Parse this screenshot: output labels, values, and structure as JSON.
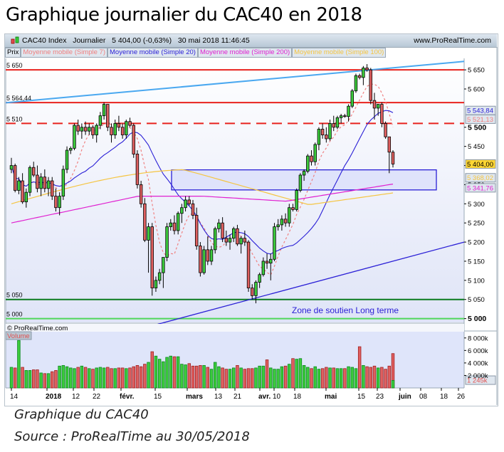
{
  "title": "Graphique journalier du CAC40 en 2018",
  "header": {
    "instrument": "CAC40 Index",
    "timeframe": "Journalier",
    "last_price": "5 404,00 (-0,63%)",
    "datetime": "30 mai 2018 11:46:45",
    "site": "www.ProRealTime.com"
  },
  "legend": [
    {
      "label": "Prix",
      "color": "#000000"
    },
    {
      "label": "Moyenne mobile (Simple 7)",
      "color": "#f08080"
    },
    {
      "label": "Moyenne mobile (Simple 20)",
      "color": "#2a1fd6"
    },
    {
      "label": "Moyenne mobile (Simple 200)",
      "color": "#e020d0"
    },
    {
      "label": "Moyenne mobile (Simple 100)",
      "color": "#f5c542"
    }
  ],
  "copyright": "© ProRealTime.com",
  "volume_label": "Volume",
  "annotation": "Zone de soutien Long terme",
  "caption": {
    "line1": "Graphique du CAC40",
    "line2": "Source : ProRealTime au 30/05/2018"
  },
  "chart_data": {
    "type": "candlestick",
    "title": "Graphique journalier du CAC40 en 2018",
    "x_tick_labels": [
      "14",
      "2018",
      "12",
      "22",
      "févr.",
      "15",
      "mars",
      "13",
      "21",
      "avr.",
      "10",
      "18",
      "mai",
      "15",
      "23",
      "juin",
      "08",
      "18",
      "26"
    ],
    "y_tick_labels": [
      "5 650",
      "5 600",
      "5 500",
      "5 450",
      "5 400",
      "5 350",
      "5 300",
      "5 250",
      "5 200",
      "5 150",
      "5 100",
      "5 050",
      "5 000"
    ],
    "ylim": [
      4990,
      5680
    ],
    "volume_tick_labels": [
      "8 000k",
      "6 000k",
      "4 000k",
      "2 000k"
    ],
    "price_badges": [
      {
        "label": "5 543,84",
        "series": "MM20",
        "color": "#2a1fd6"
      },
      {
        "label": "5 521,13",
        "series": "MM7",
        "color": "#f08080"
      },
      {
        "label": "5 404,00",
        "series": "Prix",
        "color": "#000000",
        "bg": "#ffd633"
      },
      {
        "label": "5 368,02",
        "series": "MM100",
        "color": "#f5c542"
      },
      {
        "label": "5 341,76",
        "series": "MM200",
        "color": "#e020d0"
      },
      {
        "label": "1 245k",
        "series": "Volume",
        "color": "#e05050"
      }
    ],
    "horizontal_levels": [
      {
        "value": 5650,
        "label": "5 650",
        "color": "#e8231e",
        "style": "solid"
      },
      {
        "value": 5564.44,
        "label": "5 564,44",
        "color": "#e8231e",
        "style": "solid"
      },
      {
        "value": 5510,
        "label": "5 510",
        "color": "#e8231e",
        "style": "dashed"
      },
      {
        "value": 5050,
        "label": "5 050",
        "color": "#0a7a1e",
        "style": "solid"
      },
      {
        "value": 5000,
        "label": "5 000",
        "color": "#4fd65a",
        "style": "solid"
      }
    ],
    "support_zone": {
      "from": 5340,
      "to": 5385,
      "color": "#2a1fd6"
    },
    "trendlines": [
      {
        "name": "resistance-trend",
        "color": "#4aa8f0",
        "from": [
          5565,
          "start"
        ],
        "to": [
          5670,
          "end"
        ]
      },
      {
        "name": "support-trend",
        "color": "#2a1fd6",
        "from": [
          4980,
          "févr."
        ],
        "to": [
          5200,
          "end"
        ]
      }
    ],
    "candles": [
      [
        5390,
        5420,
        5380,
        5400
      ],
      [
        5400,
        5405,
        5330,
        5335
      ],
      [
        5335,
        5370,
        5325,
        5360
      ],
      [
        5360,
        5380,
        5300,
        5305
      ],
      [
        5305,
        5340,
        5290,
        5330
      ],
      [
        5330,
        5400,
        5320,
        5395
      ],
      [
        5395,
        5410,
        5370,
        5375
      ],
      [
        5375,
        5400,
        5330,
        5340
      ],
      [
        5340,
        5380,
        5320,
        5370
      ],
      [
        5370,
        5390,
        5330,
        5340
      ],
      [
        5340,
        5370,
        5320,
        5360
      ],
      [
        5360,
        5370,
        5310,
        5320
      ],
      [
        5320,
        5340,
        5280,
        5290
      ],
      [
        5290,
        5330,
        5270,
        5320
      ],
      [
        5320,
        5400,
        5310,
        5390
      ],
      [
        5390,
        5450,
        5380,
        5440
      ],
      [
        5440,
        5450,
        5430,
        5445
      ],
      [
        5445,
        5510,
        5440,
        5505
      ],
      [
        5505,
        5520,
        5480,
        5490
      ],
      [
        5490,
        5510,
        5470,
        5500
      ],
      [
        5500,
        5515,
        5480,
        5490
      ],
      [
        5490,
        5510,
        5480,
        5500
      ],
      [
        5500,
        5505,
        5470,
        5480
      ],
      [
        5480,
        5510,
        5460,
        5505
      ],
      [
        5505,
        5540,
        5495,
        5530
      ],
      [
        5530,
        5565,
        5520,
        5560
      ],
      [
        5560,
        5560,
        5490,
        5500
      ],
      [
        5500,
        5510,
        5460,
        5480
      ],
      [
        5480,
        5520,
        5470,
        5510
      ],
      [
        5510,
        5530,
        5490,
        5500
      ],
      [
        5500,
        5510,
        5470,
        5480
      ],
      [
        5480,
        5520,
        5470,
        5515
      ],
      [
        5515,
        5525,
        5500,
        5505
      ],
      [
        5505,
        5510,
        5420,
        5430
      ],
      [
        5430,
        5440,
        5340,
        5350
      ],
      [
        5350,
        5360,
        5290,
        5300
      ],
      [
        5300,
        5315,
        5200,
        5205
      ],
      [
        5205,
        5250,
        5120,
        5240
      ],
      [
        5240,
        5250,
        5060,
        5080
      ],
      [
        5080,
        5110,
        5070,
        5100
      ],
      [
        5100,
        5130,
        5090,
        5120
      ],
      [
        5120,
        5160,
        5080,
        5160
      ],
      [
        5160,
        5250,
        5150,
        5240
      ],
      [
        5240,
        5260,
        5230,
        5250
      ],
      [
        5250,
        5270,
        5220,
        5230
      ],
      [
        5230,
        5280,
        5220,
        5275
      ],
      [
        5275,
        5300,
        5250,
        5290
      ],
      [
        5290,
        5320,
        5280,
        5310
      ],
      [
        5310,
        5320,
        5295,
        5300
      ],
      [
        5300,
        5310,
        5260,
        5270
      ],
      [
        5270,
        5290,
        5180,
        5190
      ],
      [
        5190,
        5200,
        5110,
        5120
      ],
      [
        5120,
        5190,
        5115,
        5180
      ],
      [
        5180,
        5215,
        5140,
        5150
      ],
      [
        5150,
        5190,
        5140,
        5180
      ],
      [
        5180,
        5240,
        5170,
        5235
      ],
      [
        5235,
        5260,
        5225,
        5250
      ],
      [
        5250,
        5265,
        5200,
        5210
      ],
      [
        5210,
        5230,
        5190,
        5200
      ],
      [
        5200,
        5220,
        5180,
        5210
      ],
      [
        5210,
        5240,
        5200,
        5235
      ],
      [
        5235,
        5245,
        5190,
        5195
      ],
      [
        5195,
        5215,
        5170,
        5210
      ],
      [
        5210,
        5230,
        5190,
        5200
      ],
      [
        5200,
        5205,
        5070,
        5080
      ],
      [
        5080,
        5090,
        5050,
        5060
      ],
      [
        5060,
        5100,
        5040,
        5095
      ],
      [
        5095,
        5120,
        5080,
        5115
      ],
      [
        5115,
        5160,
        5110,
        5150
      ],
      [
        5150,
        5170,
        5130,
        5145
      ],
      [
        5145,
        5170,
        5100,
        5155
      ],
      [
        5155,
        5250,
        5150,
        5240
      ],
      [
        5240,
        5260,
        5230,
        5245
      ],
      [
        5245,
        5270,
        5230,
        5260
      ],
      [
        5260,
        5275,
        5240,
        5250
      ],
      [
        5250,
        5300,
        5240,
        5290
      ],
      [
        5290,
        5300,
        5280,
        5285
      ],
      [
        5285,
        5340,
        5280,
        5335
      ],
      [
        5335,
        5380,
        5330,
        5375
      ],
      [
        5375,
        5390,
        5360,
        5385
      ],
      [
        5385,
        5430,
        5380,
        5425
      ],
      [
        5425,
        5440,
        5400,
        5410
      ],
      [
        5410,
        5460,
        5400,
        5455
      ],
      [
        5455,
        5500,
        5440,
        5495
      ],
      [
        5495,
        5510,
        5470,
        5480
      ],
      [
        5480,
        5500,
        5460,
        5470
      ],
      [
        5470,
        5520,
        5465,
        5510
      ],
      [
        5510,
        5530,
        5490,
        5500
      ],
      [
        5500,
        5530,
        5495,
        5525
      ],
      [
        5525,
        5535,
        5510,
        5530
      ],
      [
        5530,
        5535,
        5525,
        5528
      ],
      [
        5528,
        5560,
        5515,
        5555
      ],
      [
        5555,
        5600,
        5550,
        5595
      ],
      [
        5595,
        5640,
        5590,
        5635
      ],
      [
        5635,
        5640,
        5625,
        5630
      ],
      [
        5630,
        5660,
        5610,
        5655
      ],
      [
        5655,
        5665,
        5645,
        5650
      ],
      [
        5650,
        5655,
        5560,
        5570
      ],
      [
        5570,
        5590,
        5520,
        5550
      ],
      [
        5550,
        5560,
        5530,
        5560
      ],
      [
        5560,
        5565,
        5500,
        5510
      ],
      [
        5510,
        5515,
        5470,
        5475
      ],
      [
        5475,
        5440,
        5380,
        5435
      ],
      [
        5435,
        5440,
        5395,
        5404
      ]
    ],
    "volume_colors_note": "green = up day, red = down day",
    "volumes": [
      3.3,
      3.2,
      7.6,
      3.3,
      2.8,
      2.8,
      2.9,
      2.9,
      2.4,
      2.3,
      2.3,
      2.6,
      2.8,
      3.5,
      3.6,
      3.4,
      3.2,
      3.1,
      3.3,
      3.5,
      3.3,
      3.1,
      3.0,
      3.2,
      3.3,
      3.2,
      3.3,
      3.1,
      3.1,
      3.2,
      3.2,
      3.1,
      3.2,
      3.4,
      3.6,
      3.4,
      3.8,
      4.1,
      5.8,
      5.1,
      4.6,
      4.2,
      4.9,
      5.1,
      5.0,
      5.0,
      3.8,
      3.7,
      3.9,
      3.5,
      3.5,
      3.6,
      3.6,
      3.3,
      3.0,
      4.1,
      3.4,
      3.2,
      3.0,
      3.0,
      3.2,
      3.6,
      3.2,
      3.0,
      3.1,
      3.1,
      3.2,
      3.5,
      3.5,
      4.5,
      3.2,
      3.0,
      3.0,
      3.4,
      3.5,
      3.8,
      4.7,
      4.6,
      4.7,
      3.6,
      3.3,
      3.1,
      3.4,
      3.0,
      3.1,
      3.3,
      3.2,
      3.2,
      3.1,
      3.1,
      3.1,
      3.4,
      3.3,
      3.1,
      6.6,
      3.6,
      3.4,
      3.3,
      3.5,
      3.2,
      3.3,
      3.0,
      3.5,
      5.5,
      1.2
    ],
    "volume_ylim": [
      0,
      9000000
    ],
    "moving_averages": [
      "Simple 7",
      "Simple 20",
      "Simple 200",
      "Simple 100"
    ],
    "grid": false,
    "legend_position": "top-left"
  }
}
